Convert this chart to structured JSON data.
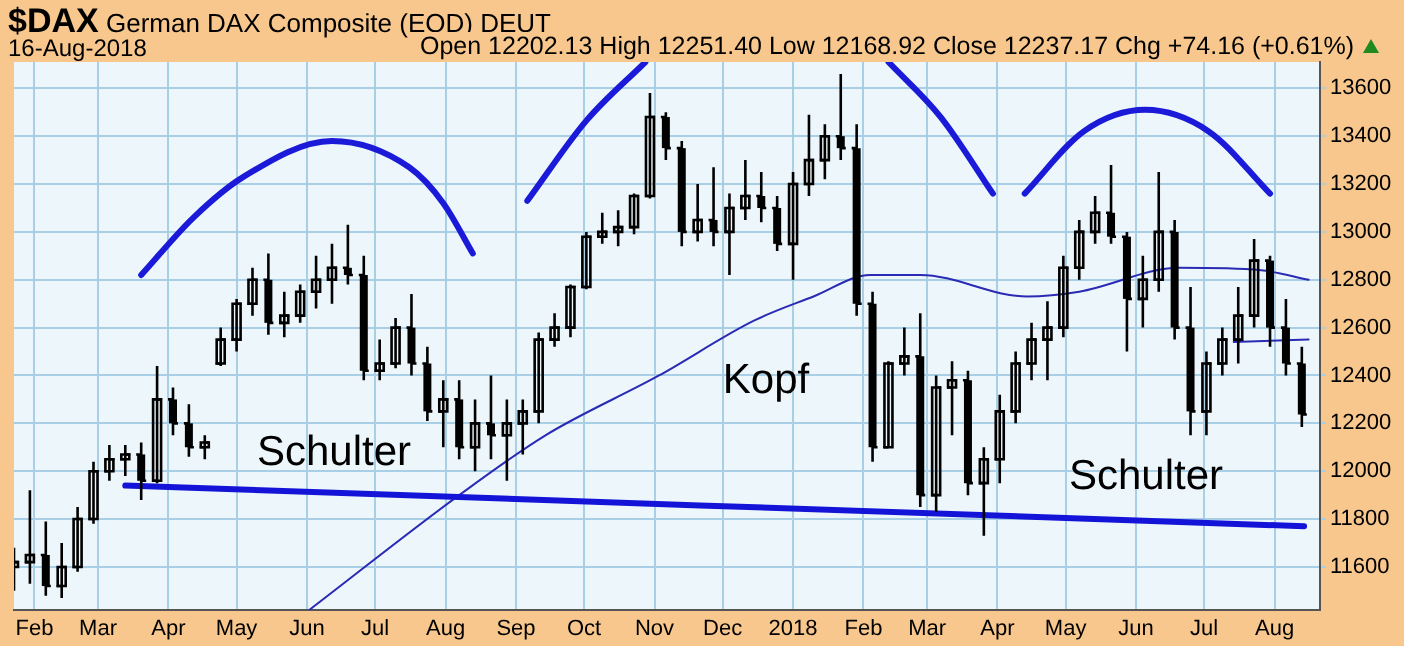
{
  "chart_data": {
    "type": "candlestick",
    "title": "$DAX German DAX Composite (EOD) DEUT",
    "subtitle": "16-Aug-2018",
    "annotations": [
      "Open 12202.13 High 12251.40 Low 12168.92 Close 12237.17 Chg +74.16 (+0.61%)",
      "Schulter",
      "Kopf",
      "Schulter"
    ],
    "color": "#000000",
    "x": [
      "2017-01-23",
      "2017-01-30",
      "2017-02-06",
      "2017-02-13",
      "2017-02-20",
      "2017-02-27",
      "2017-03-06",
      "2017-03-13",
      "2017-03-20",
      "2017-03-27",
      "2017-04-03",
      "2017-04-10",
      "2017-04-17",
      "2017-04-24",
      "2017-05-01",
      "2017-05-08",
      "2017-05-15",
      "2017-05-22",
      "2017-05-29",
      "2017-06-05",
      "2017-06-12",
      "2017-06-19",
      "2017-06-26",
      "2017-07-03",
      "2017-07-10",
      "2017-07-17",
      "2017-07-24",
      "2017-07-31",
      "2017-08-07",
      "2017-08-14",
      "2017-08-21",
      "2017-08-28",
      "2017-09-04",
      "2017-09-11",
      "2017-09-18",
      "2017-09-25",
      "2017-10-02",
      "2017-10-09",
      "2017-10-16",
      "2017-10-23",
      "2017-10-30",
      "2017-11-06",
      "2017-11-13",
      "2017-11-20",
      "2017-11-27",
      "2017-12-04",
      "2017-12-11",
      "2017-12-18",
      "2017-12-25",
      "2018-01-01",
      "2018-01-08",
      "2018-01-15",
      "2018-01-22",
      "2018-01-29",
      "2018-02-05",
      "2018-02-12",
      "2018-02-19",
      "2018-02-26",
      "2018-03-05",
      "2018-03-12",
      "2018-03-19",
      "2018-03-26",
      "2018-04-02",
      "2018-04-09",
      "2018-04-16",
      "2018-04-23",
      "2018-04-30",
      "2018-05-07",
      "2018-05-14",
      "2018-05-21",
      "2018-05-28",
      "2018-06-04",
      "2018-06-11",
      "2018-06-18",
      "2018-06-25",
      "2018-07-02",
      "2018-07-09",
      "2018-07-16",
      "2018-07-23",
      "2018-07-30",
      "2018-08-06",
      "2018-08-13"
    ],
    "ohlc": [
      [
        11600,
        11680,
        11500,
        11620
      ],
      [
        11620,
        11920,
        11530,
        11650
      ],
      [
        11650,
        11790,
        11480,
        11520
      ],
      [
        11520,
        11700,
        11470,
        11600
      ],
      [
        11600,
        11850,
        11580,
        11800
      ],
      [
        11800,
        12040,
        11780,
        12000
      ],
      [
        12000,
        12110,
        11960,
        12050
      ],
      [
        12050,
        12110,
        11980,
        12070
      ],
      [
        12070,
        12120,
        11880,
        11960
      ],
      [
        11960,
        12440,
        11950,
        12300
      ],
      [
        12300,
        12350,
        12150,
        12200
      ],
      [
        12200,
        12280,
        12060,
        12100
      ],
      [
        12100,
        12150,
        12050,
        12120
      ],
      [
        12450,
        12600,
        12440,
        12550
      ],
      [
        12550,
        12720,
        12500,
        12700
      ],
      [
        12700,
        12850,
        12650,
        12800
      ],
      [
        12800,
        12910,
        12570,
        12620
      ],
      [
        12620,
        12750,
        12560,
        12650
      ],
      [
        12650,
        12780,
        12620,
        12750
      ],
      [
        12750,
        12900,
        12680,
        12800
      ],
      [
        12800,
        12950,
        12700,
        12850
      ],
      [
        12850,
        13030,
        12780,
        12820
      ],
      [
        12820,
        12900,
        12380,
        12420
      ],
      [
        12420,
        12550,
        12380,
        12450
      ],
      [
        12450,
        12640,
        12430,
        12600
      ],
      [
        12600,
        12740,
        12400,
        12450
      ],
      [
        12450,
        12520,
        12210,
        12250
      ],
      [
        12250,
        12380,
        12100,
        12300
      ],
      [
        12300,
        12380,
        12050,
        12100
      ],
      [
        12100,
        12300,
        12000,
        12200
      ],
      [
        12200,
        12400,
        12050,
        12150
      ],
      [
        12150,
        12300,
        11960,
        12200
      ],
      [
        12200,
        12300,
        12070,
        12250
      ],
      [
        12250,
        12580,
        12200,
        12550
      ],
      [
        12550,
        12660,
        12520,
        12600
      ],
      [
        12600,
        12780,
        12560,
        12770
      ],
      [
        12770,
        13000,
        12760,
        12980
      ],
      [
        12980,
        13080,
        12950,
        13000
      ],
      [
        13000,
        13090,
        12940,
        13020
      ],
      [
        13020,
        13160,
        12990,
        13150
      ],
      [
        13150,
        13580,
        13140,
        13480
      ],
      [
        13480,
        13500,
        13300,
        13350
      ],
      [
        13350,
        13380,
        12940,
        13000
      ],
      [
        13000,
        13200,
        12960,
        13050
      ],
      [
        13050,
        13270,
        12940,
        13000
      ],
      [
        13000,
        13160,
        12820,
        13100
      ],
      [
        13100,
        13300,
        13050,
        13150
      ],
      [
        13150,
        13250,
        13040,
        13100
      ],
      [
        13100,
        13150,
        12920,
        12950
      ],
      [
        12950,
        13250,
        12800,
        13200
      ],
      [
        13200,
        13490,
        13150,
        13300
      ],
      [
        13300,
        13450,
        13220,
        13400
      ],
      [
        13400,
        13660,
        13300,
        13350
      ],
      [
        13350,
        13450,
        12650,
        12700
      ],
      [
        12700,
        12750,
        12040,
        12100
      ],
      [
        12100,
        12460,
        12100,
        12450
      ],
      [
        12450,
        12600,
        12400,
        12480
      ],
      [
        12480,
        12660,
        11850,
        11900
      ],
      [
        11900,
        12400,
        11830,
        12350
      ],
      [
        12350,
        12460,
        12150,
        12380
      ],
      [
        12380,
        12420,
        11900,
        11950
      ],
      [
        11950,
        12100,
        11730,
        12050
      ],
      [
        12050,
        12320,
        11950,
        12250
      ],
      [
        12250,
        12500,
        12200,
        12450
      ],
      [
        12450,
        12620,
        12380,
        12550
      ],
      [
        12550,
        12710,
        12380,
        12600
      ],
      [
        12600,
        12900,
        12560,
        12850
      ],
      [
        12850,
        13050,
        12800,
        13000
      ],
      [
        13000,
        13150,
        12950,
        13080
      ],
      [
        13080,
        13280,
        12950,
        12980
      ],
      [
        12980,
        13000,
        12500,
        12720
      ],
      [
        12720,
        12900,
        12600,
        12800
      ],
      [
        12800,
        13250,
        12750,
        13000
      ],
      [
        13000,
        13050,
        12550,
        12600
      ],
      [
        12600,
        12770,
        12150,
        12250
      ],
      [
        12250,
        12500,
        12150,
        12450
      ],
      [
        12450,
        12600,
        12400,
        12550
      ],
      [
        12550,
        12770,
        12450,
        12650
      ],
      [
        12650,
        12970,
        12600,
        12880
      ],
      [
        12880,
        12900,
        12520,
        12600
      ],
      [
        12600,
        12720,
        12400,
        12450
      ],
      [
        12450,
        12520,
        12185,
        12237
      ]
    ],
    "series": [
      {
        "type": "line",
        "color": "#1414d8",
        "x": [
          "2017-03-13",
          "2018-08-14"
        ],
        "values": [
          11940,
          11770
        ]
      },
      {
        "type": "line",
        "color": "#2a2ab4",
        "x": [
          "2017-06-02",
          "2017-08-07",
          "2017-09-14",
          "2017-11-03",
          "2017-12-15",
          "2018-01-10",
          "2018-02-04",
          "2018-02-26",
          "2018-04-14",
          "2018-05-07",
          "2018-06-20",
          "2018-07-26",
          "2018-08-16"
        ],
        "values": [
          11420,
          11900,
          12150,
          12400,
          12630,
          12730,
          12820,
          12820,
          12730,
          12750,
          12850,
          12840,
          12800
        ]
      },
      {
        "type": "line",
        "color": "#2a2ab4",
        "x": [
          "2018-07-14",
          "2018-08-16"
        ],
        "values": [
          12540,
          12550
        ]
      },
      {
        "type": "line",
        "color": "#1a1ad8",
        "x": [
          "2017-03-20",
          "2017-04-12",
          "2017-05-04",
          "2017-06-12",
          "2017-07-16",
          "2017-07-31",
          "2017-08-13"
        ],
        "values": [
          12820,
          13060,
          13230,
          13380,
          13270,
          13120,
          12910
        ]
      },
      {
        "type": "line",
        "color": "#1a1ad8",
        "x": [
          "2017-09-06",
          "2017-10-02",
          "2017-10-28"
        ],
        "values": [
          13130,
          13465,
          13710
        ]
      },
      {
        "type": "line",
        "color": "#1a1ad8",
        "x": [
          "2018-02-12",
          "2018-03-07",
          "2018-03-30"
        ],
        "values": [
          13710,
          13480,
          13160
        ]
      },
      {
        "type": "line",
        "color": "#1a1ad8",
        "x": [
          "2018-04-13",
          "2018-05-09",
          "2018-06-05",
          "2018-07-03",
          "2018-07-30"
        ],
        "values": [
          13160,
          13420,
          13510,
          13420,
          13160
        ]
      }
    ],
    "xlim": [
      "2017-01-23",
      "2018-08-21"
    ],
    "xticks": [
      {
        "value": "2017-02-01",
        "label": "Feb"
      },
      {
        "value": "2017-03-01",
        "label": "Mar"
      },
      {
        "value": "2017-04-01",
        "label": "Apr"
      },
      {
        "value": "2017-05-01",
        "label": "May"
      },
      {
        "value": "2017-06-01",
        "label": "Jun"
      },
      {
        "value": "2017-07-01",
        "label": "Jul"
      },
      {
        "value": "2017-08-01",
        "label": "Aug"
      },
      {
        "value": "2017-09-01",
        "label": "Sep"
      },
      {
        "value": "2017-10-01",
        "label": "Oct"
      },
      {
        "value": "2017-11-01",
        "label": "Nov"
      },
      {
        "value": "2017-12-01",
        "label": "Dec"
      },
      {
        "value": "2018-01-01",
        "label": "2018"
      },
      {
        "value": "2018-02-01",
        "label": "Feb"
      },
      {
        "value": "2018-03-01",
        "label": "Mar"
      },
      {
        "value": "2018-04-01",
        "label": "Apr"
      },
      {
        "value": "2018-05-01",
        "label": "May"
      },
      {
        "value": "2018-06-01",
        "label": "Jun"
      },
      {
        "value": "2018-07-01",
        "label": "Jul"
      },
      {
        "value": "2018-08-01",
        "label": "Aug"
      }
    ],
    "ylim": [
      11420,
      13710
    ],
    "yticks": [
      11600,
      11800,
      12000,
      12200,
      12400,
      12600,
      12800,
      13000,
      13200,
      13400,
      13600
    ],
    "grid": true
  }
}
